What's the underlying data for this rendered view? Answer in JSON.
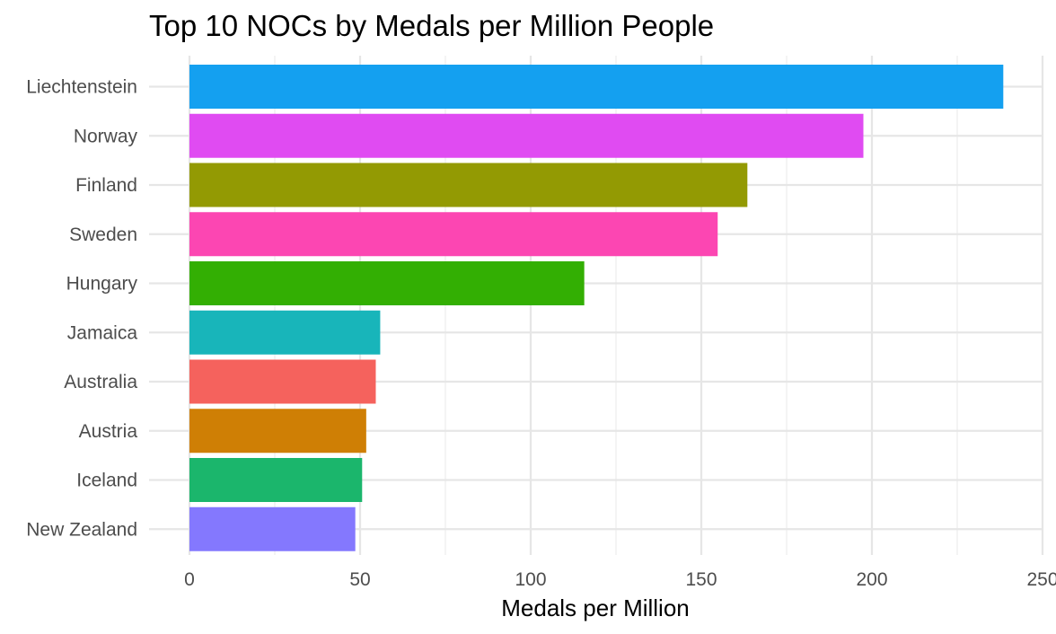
{
  "chart_data": {
    "type": "bar",
    "orientation": "horizontal",
    "title": "Top 10 NOCs by Medals per Million People",
    "xlabel": "Medals per Million",
    "ylabel": "",
    "xlim": [
      0,
      250
    ],
    "x_ticks": [
      0,
      50,
      100,
      150,
      200,
      250
    ],
    "grid": true,
    "legend": "none",
    "categories": [
      "Liechtenstein",
      "Norway",
      "Finland",
      "Sweden",
      "Hungary",
      "Jamaica",
      "Australia",
      "Austria",
      "Iceland",
      "New Zealand"
    ],
    "values": [
      238.5,
      197.5,
      163.5,
      154.8,
      115.7,
      55.9,
      54.6,
      51.8,
      50.6,
      48.6
    ],
    "colors": [
      "#14A0F0",
      "#E04BF2",
      "#939A03",
      "#FC46B2",
      "#33AF03",
      "#18B5BA",
      "#F5625D",
      "#CF7F05",
      "#1BB66C",
      "#8478FE"
    ]
  }
}
